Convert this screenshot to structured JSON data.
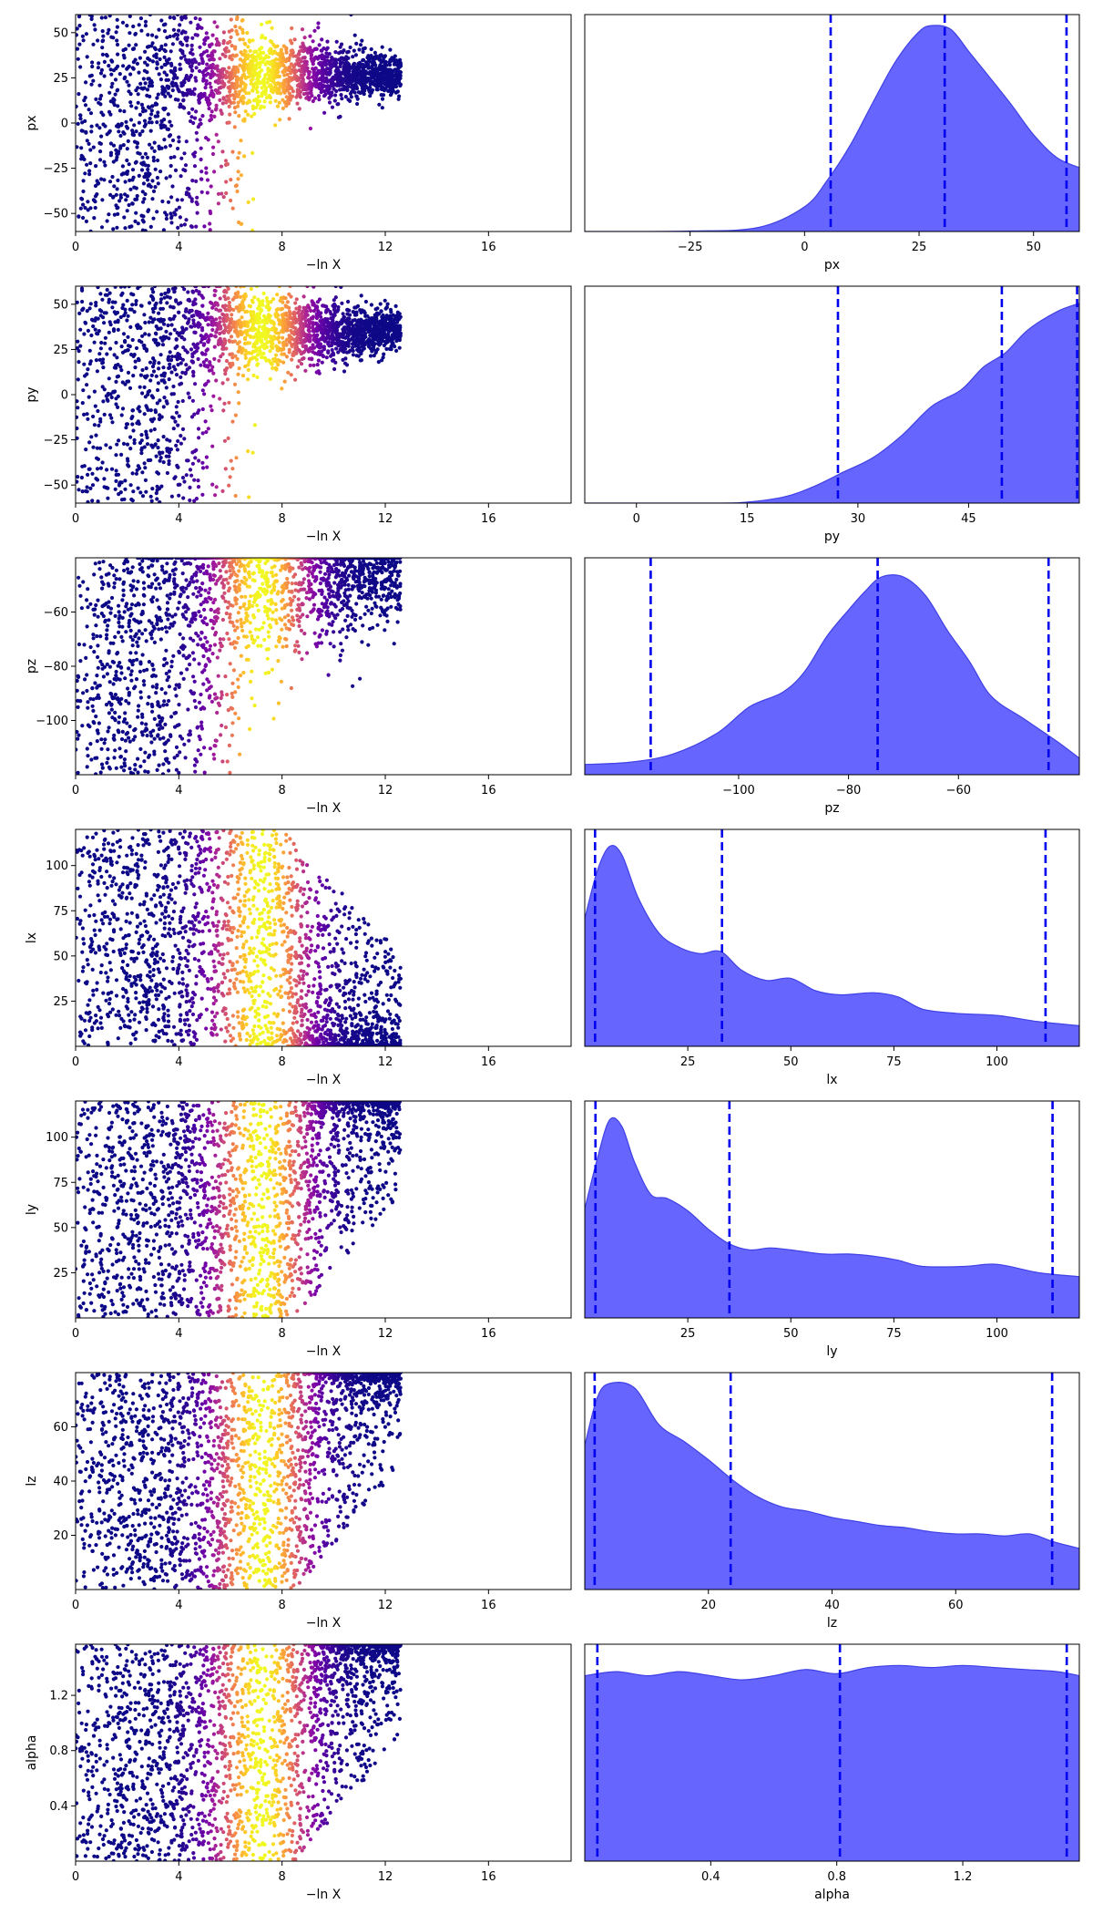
{
  "colors": {
    "kde_fill": "#6666ff",
    "kde_edge": "#4040e6",
    "quantile_line": "#0000ee",
    "colormap": [
      "#0d0887",
      "#46039f",
      "#7201a8",
      "#9c179e",
      "#bd3786",
      "#d8576b",
      "#ed7953",
      "#fb9f3a",
      "#fdca26",
      "#f0f921"
    ]
  },
  "chart_data": [
    {
      "type": "scatter",
      "name": "trace-px",
      "xlabel": "−ln X",
      "ylabel": "px",
      "xlim": [
        0,
        19.2
      ],
      "ylim": [
        -60,
        60
      ],
      "xticks": [
        0,
        4,
        8,
        12,
        16
      ],
      "yticks": [
        -50,
        -25,
        0,
        25,
        50
      ],
      "shape": "converge",
      "peak": 27,
      "spread": 12,
      "prior": [
        -60,
        60
      ],
      "mode_x": 7.2
    },
    {
      "type": "area",
      "name": "marginal-px",
      "xlabel": "px",
      "xlim": [
        -48,
        60
      ],
      "xticks": [
        -25,
        0,
        25,
        50
      ],
      "kde": [
        [
          -48,
          0
        ],
        [
          -25,
          0.002
        ],
        [
          -10,
          0.02
        ],
        [
          0,
          0.12
        ],
        [
          5,
          0.25
        ],
        [
          10,
          0.42
        ],
        [
          15,
          0.63
        ],
        [
          20,
          0.83
        ],
        [
          25,
          0.97
        ],
        [
          28,
          1.0
        ],
        [
          32,
          0.98
        ],
        [
          36,
          0.87
        ],
        [
          40,
          0.76
        ],
        [
          45,
          0.62
        ],
        [
          50,
          0.47
        ],
        [
          55,
          0.36
        ],
        [
          60,
          0.31
        ]
      ],
      "quantiles": [
        5.7,
        30.6,
        57.2
      ]
    },
    {
      "type": "scatter",
      "name": "trace-py",
      "xlabel": "−ln X",
      "ylabel": "py",
      "xlim": [
        0,
        19.2
      ],
      "ylim": [
        -60,
        60
      ],
      "xticks": [
        0,
        4,
        8,
        12,
        16
      ],
      "yticks": [
        -50,
        -25,
        0,
        25,
        50
      ],
      "shape": "converge",
      "peak": 35,
      "spread": 12,
      "prior": [
        -60,
        60
      ],
      "mode_x": 7.2
    },
    {
      "type": "area",
      "name": "marginal-py",
      "xlabel": "py",
      "xlim": [
        -7,
        60
      ],
      "xticks": [
        0,
        15,
        30,
        45
      ],
      "kde": [
        [
          -7,
          0
        ],
        [
          10,
          0
        ],
        [
          15,
          0.005
        ],
        [
          20,
          0.03
        ],
        [
          24,
          0.08
        ],
        [
          28,
          0.15
        ],
        [
          32,
          0.22
        ],
        [
          36,
          0.33
        ],
        [
          40,
          0.47
        ],
        [
          44,
          0.55
        ],
        [
          47,
          0.66
        ],
        [
          50,
          0.73
        ],
        [
          53,
          0.84
        ],
        [
          57,
          0.93
        ],
        [
          60,
          0.97
        ]
      ],
      "quantiles": [
        27.3,
        49.5,
        59.7
      ]
    },
    {
      "type": "scatter",
      "name": "trace-pz",
      "xlabel": "−ln X",
      "ylabel": "pz",
      "xlim": [
        0,
        19.2
      ],
      "ylim": [
        -120,
        -40
      ],
      "xticks": [
        0,
        4,
        8,
        12,
        16
      ],
      "yticks": [
        -100,
        -80,
        -60
      ],
      "shape": "converge",
      "peak": -45,
      "spread": 20,
      "prior": [
        -120,
        -40
      ],
      "mode_x": 7.2
    },
    {
      "type": "area",
      "name": "marginal-pz",
      "xlabel": "pz",
      "xlim": [
        -128,
        -38
      ],
      "xticks": [
        -100,
        -80,
        -60
      ],
      "kde": [
        [
          -128,
          0.05
        ],
        [
          -120,
          0.06
        ],
        [
          -112,
          0.1
        ],
        [
          -104,
          0.2
        ],
        [
          -98,
          0.33
        ],
        [
          -92,
          0.4
        ],
        [
          -88,
          0.5
        ],
        [
          -84,
          0.67
        ],
        [
          -80,
          0.8
        ],
        [
          -77,
          0.89
        ],
        [
          -74,
          0.96
        ],
        [
          -70,
          0.96
        ],
        [
          -66,
          0.87
        ],
        [
          -62,
          0.7
        ],
        [
          -58,
          0.55
        ],
        [
          -54,
          0.38
        ],
        [
          -48,
          0.27
        ],
        [
          -42,
          0.16
        ],
        [
          -38,
          0.08
        ]
      ],
      "quantiles": [
        -116,
        -74.7,
        -43.6
      ]
    },
    {
      "type": "scatter",
      "name": "trace-lx",
      "xlabel": "−ln X",
      "ylabel": "lx",
      "xlim": [
        0,
        19.2
      ],
      "ylim": [
        0,
        120
      ],
      "xticks": [
        0,
        4,
        8,
        12,
        16
      ],
      "yticks": [
        25,
        50,
        75,
        100
      ],
      "shape": "decline",
      "floor": 1,
      "prior": [
        0,
        120
      ],
      "mode_x": 7.2
    },
    {
      "type": "area",
      "name": "marginal-lx",
      "xlabel": "lx",
      "xlim": [
        0,
        120
      ],
      "xticks": [
        25,
        50,
        75,
        100
      ],
      "kde": [
        [
          0,
          0.62
        ],
        [
          3,
          0.85
        ],
        [
          6,
          0.97
        ],
        [
          9,
          0.93
        ],
        [
          13,
          0.72
        ],
        [
          18,
          0.55
        ],
        [
          23,
          0.48
        ],
        [
          28,
          0.45
        ],
        [
          33,
          0.46
        ],
        [
          38,
          0.37
        ],
        [
          44,
          0.32
        ],
        [
          50,
          0.33
        ],
        [
          56,
          0.27
        ],
        [
          62,
          0.25
        ],
        [
          70,
          0.26
        ],
        [
          76,
          0.24
        ],
        [
          82,
          0.18
        ],
        [
          90,
          0.16
        ],
        [
          100,
          0.15
        ],
        [
          110,
          0.12
        ],
        [
          120,
          0.1
        ]
      ],
      "quantiles": [
        2.5,
        33.3,
        111.8
      ]
    },
    {
      "type": "scatter",
      "name": "trace-ly",
      "xlabel": "−ln X",
      "ylabel": "ly",
      "xlim": [
        0,
        19.2
      ],
      "ylim": [
        0,
        120
      ],
      "xticks": [
        0,
        4,
        8,
        12,
        16
      ],
      "yticks": [
        25,
        50,
        75,
        100
      ],
      "shape": "rise",
      "ceiling": 118,
      "prior": [
        0,
        120
      ],
      "mode_x": 7.2
    },
    {
      "type": "area",
      "name": "marginal-ly",
      "xlabel": "ly",
      "xlim": [
        0,
        120
      ],
      "xticks": [
        25,
        50,
        75,
        100
      ],
      "kde": [
        [
          0,
          0.53
        ],
        [
          3,
          0.77
        ],
        [
          6,
          0.96
        ],
        [
          9,
          0.93
        ],
        [
          12,
          0.76
        ],
        [
          16,
          0.6
        ],
        [
          20,
          0.58
        ],
        [
          25,
          0.52
        ],
        [
          30,
          0.43
        ],
        [
          35,
          0.36
        ],
        [
          40,
          0.33
        ],
        [
          45,
          0.34
        ],
        [
          50,
          0.33
        ],
        [
          58,
          0.31
        ],
        [
          64,
          0.31
        ],
        [
          70,
          0.3
        ],
        [
          76,
          0.28
        ],
        [
          82,
          0.25
        ],
        [
          92,
          0.25
        ],
        [
          100,
          0.26
        ],
        [
          110,
          0.22
        ],
        [
          120,
          0.2
        ]
      ],
      "quantiles": [
        2.6,
        35.1,
        113.5
      ]
    },
    {
      "type": "scatter",
      "name": "trace-lz",
      "xlabel": "−ln X",
      "ylabel": "lz",
      "xlim": [
        0,
        19.2
      ],
      "ylim": [
        0,
        80
      ],
      "xticks": [
        0,
        4,
        8,
        12,
        16
      ],
      "yticks": [
        20,
        40,
        60
      ],
      "shape": "rise",
      "ceiling": 79,
      "prior": [
        0,
        80
      ],
      "mode_x": 7.2
    },
    {
      "type": "area",
      "name": "marginal-lz",
      "xlabel": "lz",
      "xlim": [
        0,
        80
      ],
      "xticks": [
        20,
        40,
        60
      ],
      "kde": [
        [
          0,
          0.7
        ],
        [
          2,
          0.93
        ],
        [
          4,
          1.0
        ],
        [
          8,
          0.98
        ],
        [
          12,
          0.8
        ],
        [
          16,
          0.72
        ],
        [
          20,
          0.63
        ],
        [
          24,
          0.53
        ],
        [
          28,
          0.45
        ],
        [
          32,
          0.4
        ],
        [
          36,
          0.38
        ],
        [
          40,
          0.35
        ],
        [
          44,
          0.33
        ],
        [
          48,
          0.31
        ],
        [
          52,
          0.3
        ],
        [
          56,
          0.28
        ],
        [
          60,
          0.27
        ],
        [
          64,
          0.27
        ],
        [
          68,
          0.26
        ],
        [
          72,
          0.27
        ],
        [
          76,
          0.23
        ],
        [
          80,
          0.2
        ]
      ],
      "quantiles": [
        1.6,
        23.6,
        75.6
      ]
    },
    {
      "type": "scatter",
      "name": "trace-alpha",
      "xlabel": "−ln X",
      "ylabel": "alpha",
      "xlim": [
        0,
        19.2
      ],
      "ylim": [
        0,
        1.57
      ],
      "xticks": [
        0,
        4,
        8,
        12,
        16
      ],
      "yticks": [
        0.4,
        0.8,
        1.2
      ],
      "shape": "rise",
      "ceiling": 1.55,
      "prior": [
        0,
        1.57
      ],
      "mode_x": 7.2
    },
    {
      "type": "area",
      "name": "marginal-alpha",
      "xlabel": "alpha",
      "xlim": [
        0,
        1.57
      ],
      "xticks": [
        0.4,
        0.8,
        1.2
      ],
      "kde": [
        [
          0,
          0.9
        ],
        [
          0.1,
          0.92
        ],
        [
          0.2,
          0.9
        ],
        [
          0.3,
          0.92
        ],
        [
          0.4,
          0.9
        ],
        [
          0.5,
          0.88
        ],
        [
          0.6,
          0.9
        ],
        [
          0.7,
          0.93
        ],
        [
          0.8,
          0.91
        ],
        [
          0.9,
          0.94
        ],
        [
          1.0,
          0.95
        ],
        [
          1.1,
          0.94
        ],
        [
          1.2,
          0.95
        ],
        [
          1.3,
          0.94
        ],
        [
          1.4,
          0.93
        ],
        [
          1.5,
          0.92
        ],
        [
          1.57,
          0.9
        ]
      ],
      "quantiles": [
        0.04,
        0.81,
        1.53
      ]
    }
  ]
}
